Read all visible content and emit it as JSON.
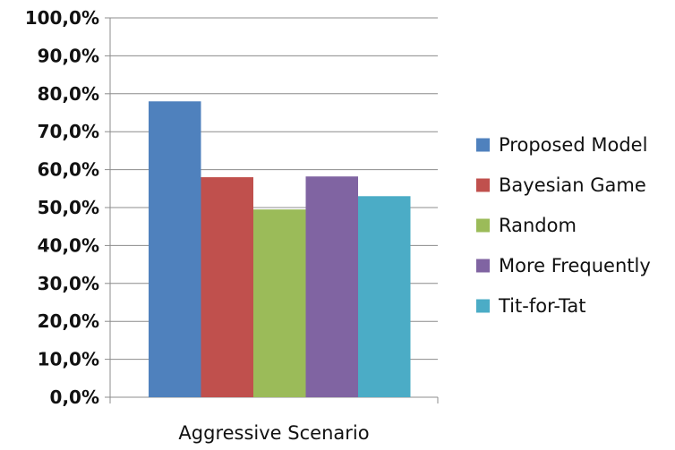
{
  "chart_data": {
    "type": "bar",
    "title": "",
    "xlabel": "",
    "ylabel": "",
    "categories": [
      "Aggressive Scenario"
    ],
    "series": [
      {
        "name": "Proposed Model",
        "values": [
          78.0
        ],
        "color": "#4F81BD"
      },
      {
        "name": "Bayesian Game",
        "values": [
          58.0
        ],
        "color": "#C0504D"
      },
      {
        "name": "Random",
        "values": [
          49.5
        ],
        "color": "#9BBB59"
      },
      {
        "name": "More Frequently",
        "values": [
          58.2
        ],
        "color": "#8064A2"
      },
      {
        "name": "Tit-for-Tat",
        "values": [
          53.0
        ],
        "color": "#4BACC6"
      }
    ],
    "ylim": [
      0,
      100
    ],
    "yticks": [
      0,
      10,
      20,
      30,
      40,
      50,
      60,
      70,
      80,
      90,
      100
    ],
    "ytick_labels": [
      "0,0%",
      "10,0%",
      "20,0%",
      "30,0%",
      "40,0%",
      "50,0%",
      "60,0%",
      "70,0%",
      "80,0%",
      "90,0%",
      "100,0%"
    ],
    "grid": true,
    "legend_position": "right"
  }
}
